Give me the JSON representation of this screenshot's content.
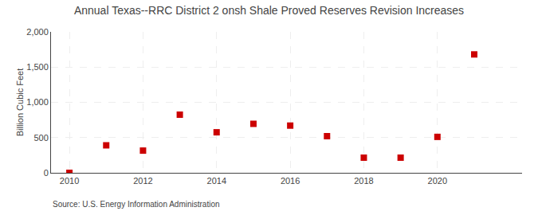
{
  "chart_data": {
    "type": "scatter",
    "title": "Annual Texas--RRC District 2 onsh Shale Proved Reserves Revision Increases",
    "ylabel": "Billion Cubic Feet",
    "source": "Source: U.S. Energy Information Administration",
    "x": [
      2010,
      2011,
      2012,
      2013,
      2014,
      2015,
      2016,
      2017,
      2018,
      2019,
      2020,
      2021
    ],
    "values": [
      0,
      390,
      315,
      825,
      575,
      695,
      670,
      520,
      215,
      215,
      510,
      1680
    ],
    "xlim": [
      2009.5,
      2022.3
    ],
    "ylim": [
      0,
      2000
    ],
    "xticks": [
      2010,
      2012,
      2014,
      2016,
      2018,
      2020
    ],
    "yticks": [
      0,
      500,
      {
        "value": 1000,
        "label": "1,000"
      },
      {
        "value": 1500,
        "label": "1,500"
      },
      {
        "value": 2000,
        "label": "2,000"
      }
    ],
    "color": "#cc0000",
    "marker": "square",
    "grid": true
  }
}
